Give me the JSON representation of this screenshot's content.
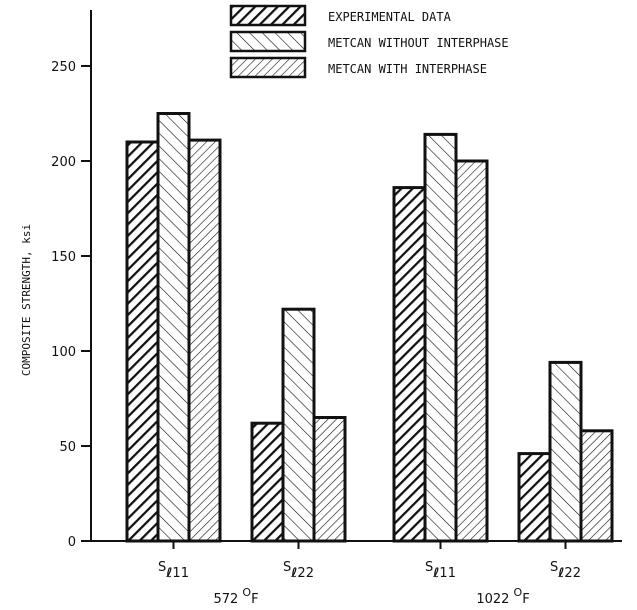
{
  "chart_data": {
    "type": "bar",
    "ylabel": "COMPOSITE STRENGTH, ksi",
    "ylim": [
      0,
      270
    ],
    "yticks": [
      0,
      50,
      100,
      150,
      200,
      250
    ],
    "grid": false,
    "legend_position": "top",
    "categories": [
      {
        "label": "S",
        "sub": "ℓ",
        "tail": "11"
      },
      {
        "label": "S",
        "sub": "ℓ",
        "tail": "22"
      },
      {
        "label": "S",
        "sub": "ℓ",
        "tail": "11"
      },
      {
        "label": "S",
        "sub": "ℓ",
        "tail": "22"
      }
    ],
    "groups": [
      {
        "label": "572 °F",
        "temp": "572",
        "unit_sup": "O",
        "unit": "F",
        "categories": [
          0,
          1
        ]
      },
      {
        "label": "1022 °F",
        "temp": "1022",
        "unit_sup": "O",
        "unit": "F",
        "categories": [
          2,
          3
        ]
      }
    ],
    "series": [
      {
        "name": "EXPERIMENTAL DATA",
        "pattern": "dense-right-hatch",
        "values": [
          210,
          62,
          186,
          46
        ]
      },
      {
        "name": "METCAN WITHOUT INTERPHASE",
        "pattern": "sparse-left-hatch",
        "values": [
          225,
          122,
          214,
          94
        ]
      },
      {
        "name": "METCAN WITH INTERPHASE",
        "pattern": "light-right-hatch",
        "values": [
          211,
          65,
          200,
          58
        ]
      }
    ]
  }
}
